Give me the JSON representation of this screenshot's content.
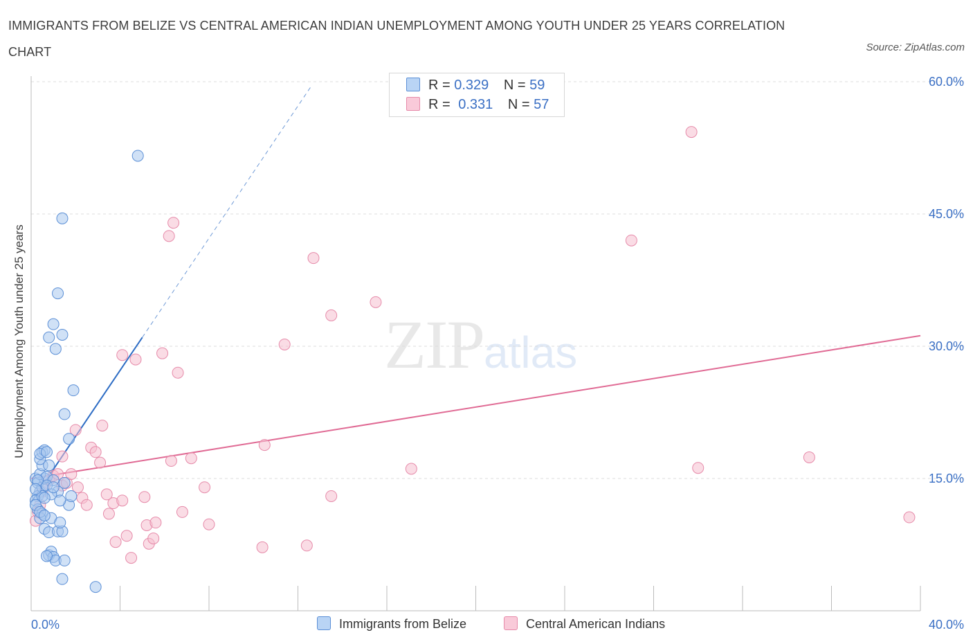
{
  "title": "IMMIGRANTS FROM BELIZE VS CENTRAL AMERICAN INDIAN UNEMPLOYMENT AMONG YOUTH UNDER 25 YEARS CORRELATION CHART",
  "source": "Source: ZipAtlas.com",
  "watermark": {
    "zip": "ZIP",
    "atlas": "atlas"
  },
  "legend_top": [
    {
      "r_label": "R =",
      "r_value": "0.329",
      "n_label": "N =",
      "n_value": "59"
    },
    {
      "r_label": "R =",
      "r_value": "0.331",
      "n_label": "N =",
      "n_value": "57"
    }
  ],
  "colors": {
    "belize_fill": "#a9c8ef",
    "belize_stroke": "#5b8fd6",
    "belize_line": "#2d6cc4",
    "cai_fill": "#f6bfd0",
    "cai_stroke": "#e68aa9",
    "cai_line": "#e06a94",
    "tick_text": "#3a6fc4",
    "grid": "#dcdcdc"
  },
  "chart_data": {
    "type": "scatter",
    "title": "IMMIGRANTS FROM BELIZE VS CENTRAL AMERICAN INDIAN UNEMPLOYMENT AMONG YOUTH UNDER 25 YEARS CORRELATION CHART",
    "xlabel": "",
    "ylabel": "Unemployment Among Youth under 25 years",
    "xlim": [
      0,
      40
    ],
    "ylim": [
      0,
      60
    ],
    "x_tick_labels": [
      "0.0%",
      "40.0%"
    ],
    "y_ticks": [
      {
        "value": 15,
        "label": "15.0%"
      },
      {
        "value": 30,
        "label": "30.0%"
      },
      {
        "value": 45,
        "label": "45.0%"
      },
      {
        "value": 60,
        "label": "60.0%"
      }
    ],
    "series": [
      {
        "name": "Immigrants from Belize",
        "R": 0.329,
        "N": 59,
        "trend": {
          "x0": 0.0,
          "y0": 12.3,
          "x1": 5.0,
          "y1": 31.0,
          "dash_x1": 12.6,
          "dash_y1": 59.5
        },
        "points": [
          [
            0.2,
            15
          ],
          [
            0.3,
            14.5
          ],
          [
            0.4,
            13.5
          ],
          [
            0.3,
            13
          ],
          [
            0.2,
            12.5
          ],
          [
            0.5,
            14
          ],
          [
            0.6,
            15
          ],
          [
            0.4,
            15.5
          ],
          [
            0.7,
            15.2
          ],
          [
            0.5,
            16.5
          ],
          [
            0.4,
            17.2
          ],
          [
            0.8,
            16.5
          ],
          [
            0.5,
            18
          ],
          [
            0.6,
            18.2
          ],
          [
            0.4,
            17.8
          ],
          [
            0.7,
            18
          ],
          [
            0.3,
            11.5
          ],
          [
            0.5,
            11
          ],
          [
            0.4,
            10.5
          ],
          [
            0.9,
            10.5
          ],
          [
            0.6,
            9.3
          ],
          [
            0.8,
            8.9
          ],
          [
            1.2,
            9
          ],
          [
            1.4,
            9
          ],
          [
            1.3,
            10
          ],
          [
            1.7,
            12
          ],
          [
            1.8,
            13
          ],
          [
            1.2,
            13.5
          ],
          [
            1.5,
            14.5
          ],
          [
            1.0,
            14.8
          ],
          [
            0.7,
            14.2
          ],
          [
            0.9,
            13.2
          ],
          [
            0.2,
            12
          ],
          [
            0.4,
            11.2
          ],
          [
            0.6,
            10.8
          ],
          [
            0.8,
            6.3
          ],
          [
            0.9,
            6.7
          ],
          [
            1.0,
            6.1
          ],
          [
            1.1,
            5.7
          ],
          [
            1.5,
            5.7
          ],
          [
            1.4,
            3.6
          ],
          [
            2.9,
            2.7
          ],
          [
            0.7,
            6.2
          ],
          [
            0.8,
            31
          ],
          [
            1.0,
            32.5
          ],
          [
            1.1,
            29.7
          ],
          [
            1.4,
            31.3
          ],
          [
            1.2,
            36
          ],
          [
            1.4,
            44.5
          ],
          [
            4.8,
            51.6
          ],
          [
            1.9,
            25
          ],
          [
            1.5,
            22.3
          ],
          [
            1.7,
            19.5
          ],
          [
            0.3,
            14.8
          ],
          [
            0.5,
            13
          ],
          [
            1.0,
            14
          ],
          [
            0.6,
            12.8
          ],
          [
            0.2,
            13.8
          ],
          [
            1.3,
            12.5
          ]
        ]
      },
      {
        "name": "Central American Indians",
        "R": 0.331,
        "N": 57,
        "trend": {
          "x0": 0.0,
          "y0": 15.0,
          "x1": 40.0,
          "y1": 31.2
        },
        "points": [
          [
            0.2,
            10.2
          ],
          [
            0.3,
            11.2
          ],
          [
            0.4,
            12
          ],
          [
            0.5,
            13.5
          ],
          [
            0.6,
            14.2
          ],
          [
            0.8,
            14.8
          ],
          [
            1.0,
            15.3
          ],
          [
            1.2,
            15.5
          ],
          [
            1.4,
            14.2
          ],
          [
            1.6,
            14.5
          ],
          [
            1.8,
            15.5
          ],
          [
            1.4,
            17.5
          ],
          [
            2.0,
            20.5
          ],
          [
            2.1,
            14
          ],
          [
            2.3,
            12.8
          ],
          [
            2.5,
            12
          ],
          [
            2.7,
            18.5
          ],
          [
            2.9,
            18
          ],
          [
            3.1,
            16.8
          ],
          [
            3.2,
            21
          ],
          [
            3.4,
            13.2
          ],
          [
            3.5,
            11
          ],
          [
            3.7,
            12.2
          ],
          [
            3.8,
            7.8
          ],
          [
            4.1,
            12.5
          ],
          [
            4.3,
            8.5
          ],
          [
            4.5,
            6
          ],
          [
            4.1,
            29
          ],
          [
            4.7,
            28.5
          ],
          [
            5.1,
            12.9
          ],
          [
            5.2,
            9.7
          ],
          [
            5.3,
            7.6
          ],
          [
            5.5,
            8.2
          ],
          [
            5.6,
            10
          ],
          [
            5.9,
            29.2
          ],
          [
            6.2,
            42.5
          ],
          [
            6.4,
            44
          ],
          [
            6.3,
            17
          ],
          [
            6.6,
            27
          ],
          [
            6.8,
            11.2
          ],
          [
            7.2,
            17.3
          ],
          [
            7.8,
            14
          ],
          [
            8.0,
            9.8
          ],
          [
            10.4,
            7.2
          ],
          [
            10.5,
            18.8
          ],
          [
            11.4,
            30.2
          ],
          [
            12.4,
            7.4
          ],
          [
            12.7,
            40
          ],
          [
            13.5,
            13
          ],
          [
            13.5,
            33.5
          ],
          [
            15.5,
            35
          ],
          [
            17.1,
            16.1
          ],
          [
            27.0,
            42
          ],
          [
            29.7,
            54.3
          ],
          [
            30.0,
            16.2
          ],
          [
            35.0,
            17.4
          ],
          [
            39.5,
            10.6
          ]
        ]
      }
    ],
    "legend": [
      "Immigrants from Belize",
      "Central American Indians"
    ],
    "legend_position": "bottom-center"
  }
}
